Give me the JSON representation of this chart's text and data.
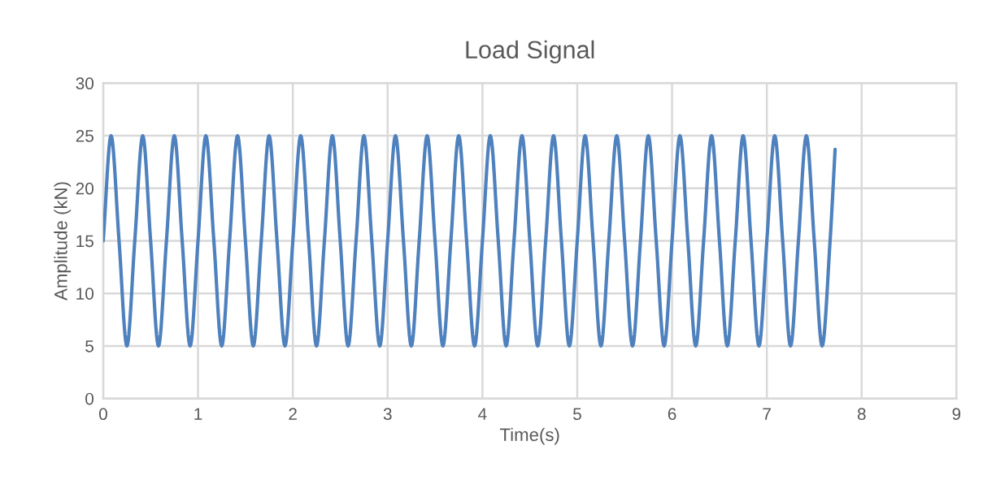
{
  "chart_data": {
    "type": "line",
    "title": "Load Signal",
    "xlabel": "Time(s)",
    "ylabel": "Amplitude (kN)",
    "xlim": [
      0,
      9
    ],
    "xticks": [
      0,
      1,
      2,
      3,
      4,
      5,
      6,
      7,
      8,
      9
    ],
    "ylim": [
      0,
      30
    ],
    "yticks": [
      0,
      5,
      10,
      15,
      20,
      25,
      30
    ],
    "grid": true,
    "marker": "none",
    "line_style": "solid",
    "series": [
      {
        "color": "#4e81bd",
        "x": [
          0,
          0.083,
          0.167,
          0.25,
          0.333,
          0.417,
          0.5,
          0.583,
          0.667,
          0.75,
          0.833,
          0.917,
          1,
          1.083,
          1.167,
          1.25,
          1.333,
          1.417,
          1.5,
          1.583,
          1.667,
          1.75,
          1.833,
          1.917,
          2,
          2.083,
          2.167,
          2.25,
          2.333,
          2.417,
          2.5,
          2.583,
          2.667,
          2.75,
          2.833,
          2.917,
          3,
          3.083,
          3.167,
          3.25,
          3.333,
          3.417,
          3.5,
          3.583,
          3.667,
          3.75,
          3.833,
          3.917,
          4,
          4.083,
          4.167,
          4.25,
          4.333,
          4.417,
          4.5,
          4.583,
          4.667,
          4.75,
          4.833,
          4.917,
          5,
          5.083,
          5.167,
          5.25,
          5.333,
          5.417,
          5.5,
          5.583,
          5.667,
          5.75,
          5.833,
          5.917,
          6,
          6.083,
          6.167,
          6.25,
          6.333,
          6.417,
          6.5,
          6.583,
          6.667,
          6.75,
          6.833,
          6.917,
          7,
          7.083,
          7.167,
          7.25,
          7.333,
          7.417,
          7.5,
          7.583,
          7.667,
          7.72
        ],
        "values": [
          15,
          25,
          15,
          5,
          15,
          25,
          15,
          5,
          15,
          25,
          15,
          5,
          15,
          25,
          15,
          5,
          15,
          25,
          15,
          5,
          15,
          25,
          15,
          5,
          15,
          25,
          15,
          5,
          15,
          25,
          15,
          5,
          15,
          25,
          15,
          5,
          15,
          25,
          15,
          5,
          15,
          25,
          15,
          5,
          15,
          25,
          15,
          5,
          15,
          25,
          15,
          5,
          15,
          25,
          15,
          5,
          15,
          25,
          15,
          5,
          15,
          25,
          15,
          5,
          15,
          25,
          15,
          5,
          15,
          25,
          15,
          5,
          15,
          25,
          15,
          5,
          15,
          25,
          15,
          5,
          15,
          25,
          15,
          5,
          15,
          25,
          15,
          5,
          15,
          25,
          15,
          5,
          15,
          23.7
        ]
      }
    ]
  }
}
